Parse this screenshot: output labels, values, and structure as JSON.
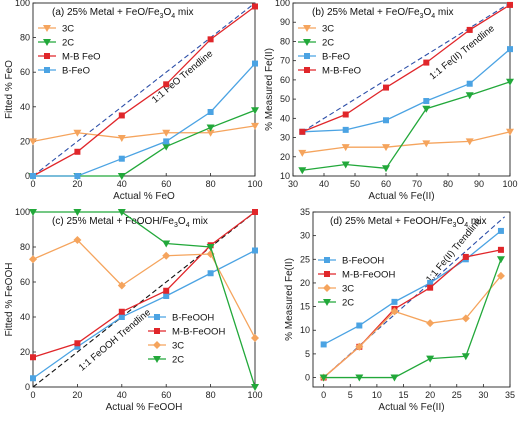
{
  "colors": {
    "3C": "#F5A45D",
    "2C": "#22A83A",
    "M-B": "#E0262A",
    "B": "#4BA3E3",
    "diag": "#2D4FA8"
  },
  "chart_data": [
    {
      "type": "line",
      "panel_label": "(a)",
      "title_prefix": "25% Metal + FeO/Fe",
      "title_sub1": "3",
      "title_mid": "O",
      "title_sub2": "4",
      "title_suffix": " mix",
      "xlabel": "Actual % FeO",
      "ylabel": "Fitted % FeO",
      "xlim": [
        0,
        100
      ],
      "ylim": [
        0,
        100
      ],
      "xticks": [
        0,
        20,
        40,
        60,
        80,
        100
      ],
      "yticks": [
        0,
        20,
        40,
        60,
        80,
        100
      ],
      "trendline": {
        "x": [
          0,
          100
        ],
        "y": [
          0,
          100
        ],
        "label": "1:1 FeO Trendline"
      },
      "legend_position": "center-left",
      "series": [
        {
          "name": "3C",
          "key": "3C",
          "marker": "tri-down",
          "x": [
            0,
            20,
            40,
            60,
            80,
            100
          ],
          "y": [
            20,
            25,
            22,
            25,
            25,
            29
          ]
        },
        {
          "name": "2C",
          "key": "2C",
          "marker": "tri-down",
          "x": [
            0,
            20,
            40,
            60,
            80,
            100
          ],
          "y": [
            0,
            0,
            0,
            17,
            28,
            38
          ]
        },
        {
          "name": "M-B FeO",
          "key": "M-B",
          "marker": "square",
          "x": [
            0,
            20,
            40,
            60,
            80,
            100
          ],
          "y": [
            0,
            14,
            35,
            53,
            79,
            98
          ]
        },
        {
          "name": "B-FeO",
          "key": "B",
          "marker": "square",
          "x": [
            0,
            20,
            40,
            60,
            80,
            100
          ],
          "y": [
            0,
            0,
            10,
            20,
            37,
            65
          ]
        }
      ]
    },
    {
      "type": "line",
      "panel_label": "(b)",
      "title_prefix": "25% Metal + FeO/Fe",
      "title_sub1": "3",
      "title_mid": "O",
      "title_sub2": "4",
      "title_suffix": " mix",
      "xlabel": "Actual % Fe(II)",
      "ylabel": "% Measured Fe(II)",
      "xlim": [
        30,
        100
      ],
      "ylim": [
        10,
        100
      ],
      "xticks": [
        30,
        40,
        50,
        60,
        70,
        80,
        90,
        100
      ],
      "yticks": [
        10,
        20,
        30,
        40,
        50,
        60,
        70,
        80,
        90,
        100
      ],
      "trendline": {
        "x": [
          33,
          100
        ],
        "y": [
          33,
          100
        ],
        "label": "1:1 Fe(II) Trendline"
      },
      "legend_position": "top-left",
      "series": [
        {
          "name": "3C",
          "key": "3C",
          "marker": "tri-down",
          "x": [
            33,
            47,
            60,
            73,
            87,
            100
          ],
          "y": [
            22,
            25,
            25,
            27,
            28,
            33
          ]
        },
        {
          "name": "2C",
          "key": "2C",
          "marker": "tri-down",
          "x": [
            33,
            47,
            60,
            73,
            87,
            100
          ],
          "y": [
            13,
            16,
            14,
            45,
            52,
            59
          ]
        },
        {
          "name": "B-FeO",
          "key": "B",
          "marker": "square",
          "x": [
            33,
            47,
            60,
            73,
            87,
            100
          ],
          "y": [
            33,
            34,
            39,
            49,
            58,
            76
          ]
        },
        {
          "name": "M-B-FeO",
          "key": "M-B",
          "marker": "square",
          "x": [
            33,
            47,
            60,
            73,
            87,
            100
          ],
          "y": [
            33,
            42,
            56,
            69,
            86,
            99
          ]
        }
      ]
    },
    {
      "type": "line",
      "panel_label": "(c)",
      "title_prefix": "25% Metal + FeOOH/Fe",
      "title_sub1": "3",
      "title_mid": "O",
      "title_sub2": "4",
      "title_suffix": " mix",
      "xlabel": "Actual % FeOOH",
      "ylabel": "Fitted % FeOOH",
      "xlim": [
        0,
        100
      ],
      "ylim": [
        0,
        100
      ],
      "xticks": [
        0,
        20,
        40,
        60,
        80,
        100
      ],
      "yticks": [
        0,
        20,
        40,
        60,
        80,
        100
      ],
      "trendline": {
        "x": [
          0,
          100
        ],
        "y": [
          0,
          100
        ],
        "label": "1:1 FeOOH Trendline"
      },
      "legend_position": "bottom-right",
      "series": [
        {
          "name": "B-FeOOH",
          "key": "B",
          "marker": "square",
          "x": [
            0,
            20,
            40,
            60,
            80,
            100
          ],
          "y": [
            5,
            23,
            40,
            52,
            65,
            78
          ]
        },
        {
          "name": "M-B-FeOOH",
          "key": "M-B",
          "marker": "square",
          "x": [
            0,
            20,
            40,
            60,
            80,
            100
          ],
          "y": [
            17,
            25,
            43,
            55,
            81,
            100
          ]
        },
        {
          "name": "3C",
          "key": "3C",
          "marker": "diamond",
          "x": [
            0,
            20,
            40,
            60,
            80,
            100
          ],
          "y": [
            73,
            84,
            58,
            75,
            76,
            28
          ]
        },
        {
          "name": "2C",
          "key": "2C",
          "marker": "tri-down",
          "x": [
            0,
            20,
            40,
            60,
            80,
            100
          ],
          "y": [
            100,
            100,
            100,
            82,
            80,
            0
          ]
        }
      ]
    },
    {
      "type": "line",
      "panel_label": "(d)",
      "title_prefix": "25% Metal + FeOOH/Fe",
      "title_sub1": "3",
      "title_mid": "O",
      "title_sub2": "4",
      "title_suffix": " mix",
      "xlabel": "Actual % Fe(II)",
      "ylabel": "% Measured Fe(II)",
      "xlim": [
        -2,
        35
      ],
      "ylim": [
        -2,
        35
      ],
      "xticks": [
        0,
        5,
        10,
        15,
        20,
        25,
        30,
        35
      ],
      "yticks": [
        0,
        5,
        10,
        15,
        20,
        25,
        30,
        35
      ],
      "trendline": {
        "x": [
          0,
          34
        ],
        "y": [
          0,
          34
        ],
        "label": "1:1 Fe(II) Trendline"
      },
      "legend_position": "top-left",
      "series": [
        {
          "name": "B-FeOOH",
          "key": "B",
          "marker": "square",
          "x": [
            0,
            6.7,
            13.3,
            20,
            26.7,
            33.3
          ],
          "y": [
            7,
            11,
            16,
            20,
            25,
            31
          ]
        },
        {
          "name": "M-B-FeOOH",
          "key": "M-B",
          "marker": "square",
          "x": [
            0,
            6.7,
            13.3,
            20,
            26.7,
            33.3
          ],
          "y": [
            0,
            6.5,
            14.5,
            19,
            25.5,
            27
          ]
        },
        {
          "name": "3C",
          "key": "3C",
          "marker": "diamond",
          "x": [
            0,
            6.7,
            13.3,
            20,
            26.7,
            33.3
          ],
          "y": [
            0,
            6.5,
            14,
            11.5,
            12.5,
            21.5
          ]
        },
        {
          "name": "2C",
          "key": "2C",
          "marker": "tri-down",
          "x": [
            0,
            6.7,
            13.3,
            20,
            26.7,
            33.3
          ],
          "y": [
            0,
            0,
            0,
            4,
            4.5,
            25
          ]
        }
      ]
    }
  ]
}
